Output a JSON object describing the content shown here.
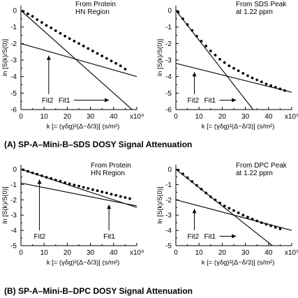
{
  "figure": {
    "caption_a": "(A) SP-A–Mini-B–SDS DOSY Signal Attenuation",
    "caption_b": "(B) SP-A–Mini-B–DPC DOSY Signal Attenuation"
  },
  "chart_data": [
    {
      "type": "scatter",
      "panel": "A-left",
      "annotation_lines": [
        "From Protein",
        "HN Region"
      ],
      "ylabel": "ln [S(k)/S(0)]",
      "xlabel": "k [= (γδg)²(Δ−δ/3)] (s/m²)",
      "x_tick_labels": [
        "0",
        "10",
        "20",
        "30",
        "40",
        "x10⁹"
      ],
      "y_tick_labels": [
        "0",
        "-1",
        "-2",
        "-3",
        "-4",
        "-5",
        "-6"
      ],
      "xlim": [
        0,
        50
      ],
      "ylim": [
        -6,
        0.3
      ],
      "series": [
        {
          "points": [
            [
              1,
              -0.05
            ],
            [
              3,
              -0.2
            ],
            [
              5,
              -0.35
            ],
            [
              7,
              -0.55
            ],
            [
              9,
              -0.72
            ],
            [
              11,
              -0.9
            ],
            [
              13,
              -1.05
            ],
            [
              15,
              -1.22
            ],
            [
              17,
              -1.38
            ],
            [
              19,
              -1.55
            ],
            [
              21,
              -1.7
            ],
            [
              23,
              -1.85
            ],
            [
              25,
              -2.0
            ],
            [
              27,
              -2.15
            ],
            [
              29,
              -2.3
            ],
            [
              31,
              -2.45
            ],
            [
              33,
              -2.6
            ],
            [
              35,
              -2.75
            ],
            [
              37,
              -2.9
            ],
            [
              39,
              -3.05
            ],
            [
              41,
              -3.2
            ],
            [
              43,
              -3.35
            ],
            [
              45,
              -3.55
            ]
          ]
        }
      ],
      "lines": [
        {
          "label": "Fit1",
          "intercept": -2.0,
          "slope": -0.04
        },
        {
          "label": "Fit2",
          "intercept": 0.0,
          "slope": -0.125
        }
      ],
      "fit_labels": [
        "Fit2",
        "Fit1"
      ]
    },
    {
      "type": "scatter",
      "panel": "A-right",
      "annotation_lines": [
        "From SDS Peak",
        "at 1.22 ppm"
      ],
      "ylabel": "ln [S(k)/S(0)]",
      "xlabel": "k [= (γδg)²(Δ−δ/3)] (s/m²)",
      "x_tick_labels": [
        "0",
        "10",
        "20",
        "30",
        "40",
        "x10⁹"
      ],
      "y_tick_labels": [
        "0",
        "-1",
        "-2",
        "-3",
        "-4",
        "-5",
        "-6"
      ],
      "xlim": [
        0,
        50
      ],
      "ylim": [
        -6,
        0.3
      ],
      "series": [
        {
          "points": [
            [
              1,
              -0.1
            ],
            [
              3,
              -0.5
            ],
            [
              5,
              -0.85
            ],
            [
              7,
              -1.2
            ],
            [
              9,
              -1.55
            ],
            [
              11,
              -1.85
            ],
            [
              13,
              -2.15
            ],
            [
              15,
              -2.45
            ],
            [
              17,
              -2.7
            ],
            [
              19,
              -2.95
            ],
            [
              21,
              -3.15
            ],
            [
              23,
              -3.35
            ],
            [
              25,
              -3.5
            ],
            [
              27,
              -3.65
            ],
            [
              29,
              -3.8
            ],
            [
              31,
              -3.95
            ],
            [
              33,
              -4.08
            ],
            [
              35,
              -4.2
            ],
            [
              37,
              -4.32
            ],
            [
              39,
              -4.45
            ],
            [
              41,
              -4.55
            ],
            [
              43,
              -4.65
            ],
            [
              45,
              -4.75
            ],
            [
              47,
              -4.85
            ]
          ]
        }
      ],
      "lines": [
        {
          "label": "Fit1",
          "intercept": -3.2,
          "slope": -0.035
        },
        {
          "label": "Fit2",
          "intercept": 0.0,
          "slope": -0.18
        }
      ],
      "fit_labels": [
        "Fit2",
        "Fit1"
      ]
    },
    {
      "type": "scatter",
      "panel": "B-left",
      "annotation_lines": [
        "From Protein",
        "HN Region"
      ],
      "ylabel": "ln [S(k)/S(0)]",
      "xlabel": "k [= (γδg)²(Δ−δ/3)] (s/m²)",
      "x_tick_labels": [
        "0",
        "10",
        "20",
        "30",
        "40",
        "x10⁹"
      ],
      "y_tick_labels": [
        "0",
        "-1",
        "-2",
        "-3",
        "-4",
        "-5"
      ],
      "xlim": [
        0,
        50
      ],
      "ylim": [
        -5,
        0.3
      ],
      "series": [
        {
          "points": [
            [
              1,
              -0.03
            ],
            [
              3,
              -0.13
            ],
            [
              5,
              -0.23
            ],
            [
              7,
              -0.32
            ],
            [
              9,
              -0.42
            ],
            [
              11,
              -0.52
            ],
            [
              13,
              -0.6
            ],
            [
              15,
              -0.7
            ],
            [
              17,
              -0.78
            ],
            [
              19,
              -0.87
            ],
            [
              21,
              -0.95
            ],
            [
              23,
              -1.03
            ],
            [
              25,
              -1.1
            ],
            [
              27,
              -1.18
            ],
            [
              29,
              -1.25
            ],
            [
              31,
              -1.33
            ],
            [
              33,
              -1.4
            ],
            [
              35,
              -1.48
            ],
            [
              37,
              -1.55
            ],
            [
              39,
              -1.63
            ],
            [
              41,
              -1.7
            ],
            [
              43,
              -1.78
            ],
            [
              45,
              -1.85
            ],
            [
              47,
              -1.92
            ]
          ]
        }
      ],
      "lines": [
        {
          "label": "Fit1",
          "intercept": -0.9,
          "slope": -0.03
        },
        {
          "label": "Fit2",
          "intercept": 0.0,
          "slope": -0.05
        }
      ],
      "fit_labels": [
        "Fit2",
        "Fit1"
      ]
    },
    {
      "type": "scatter",
      "panel": "B-right",
      "annotation_lines": [
        "From DPC Peak",
        "at 1.22 ppm"
      ],
      "ylabel": "ln [S(k)/S(0)]",
      "xlabel": "k [= (γδg)²(Δ−δ/3)] (s/m²)",
      "x_tick_labels": [
        "0",
        "10",
        "20",
        "30",
        "40",
        "x10⁹"
      ],
      "y_tick_labels": [
        "0",
        "-1",
        "-2",
        "-3",
        "-4",
        "-5"
      ],
      "xlim": [
        0,
        50
      ],
      "ylim": [
        -5,
        0.3
      ],
      "series": [
        {
          "points": [
            [
              1,
              -0.05
            ],
            [
              3,
              -0.3
            ],
            [
              5,
              -0.55
            ],
            [
              7,
              -0.8
            ],
            [
              9,
              -1.05
            ],
            [
              11,
              -1.3
            ],
            [
              13,
              -1.55
            ],
            [
              15,
              -1.8
            ],
            [
              17,
              -2.0
            ],
            [
              19,
              -2.2
            ],
            [
              21,
              -2.4
            ],
            [
              23,
              -2.55
            ],
            [
              25,
              -2.7
            ],
            [
              27,
              -2.85
            ],
            [
              29,
              -3.0
            ],
            [
              31,
              -3.13
            ],
            [
              33,
              -3.26
            ],
            [
              35,
              -3.38
            ],
            [
              37,
              -3.5
            ],
            [
              39,
              -3.6
            ],
            [
              41,
              -3.7
            ],
            [
              43,
              -3.8
            ],
            [
              45,
              -3.9
            ]
          ]
        }
      ],
      "lines": [
        {
          "label": "Fit1",
          "intercept": -2.0,
          "slope": -0.04
        },
        {
          "label": "Fit2",
          "intercept": 0.0,
          "slope": -0.12
        }
      ],
      "fit_labels": [
        "Fit2",
        "Fit1"
      ]
    }
  ]
}
